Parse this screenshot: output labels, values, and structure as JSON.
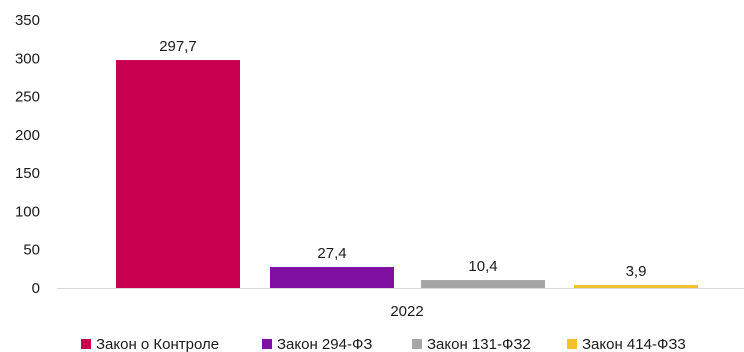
{
  "chart_data": {
    "type": "bar",
    "categories": [
      "2022"
    ],
    "series": [
      {
        "name": "Закон о Контроле",
        "values": [
          297.7
        ],
        "label": "297,7",
        "color": "#C8004F"
      },
      {
        "name": "Закон 294-ФЗ",
        "values": [
          27.4
        ],
        "label": "27,4",
        "color": "#7E0FA0"
      },
      {
        "name": "Закон 131-ФЗ2",
        "values": [
          10.4
        ],
        "label": "10,4",
        "color": "#A6A6A6"
      },
      {
        "name": "Закон 414-ФЗ3",
        "values": [
          3.9
        ],
        "label": "3,9",
        "color": "#F2C12E"
      }
    ],
    "yticks": [
      0,
      50,
      100,
      150,
      200,
      250,
      300,
      350
    ],
    "ylim": [
      0,
      350
    ],
    "grid": false,
    "legend_position": "bottom",
    "title": "",
    "xlabel": "",
    "ylabel": ""
  }
}
